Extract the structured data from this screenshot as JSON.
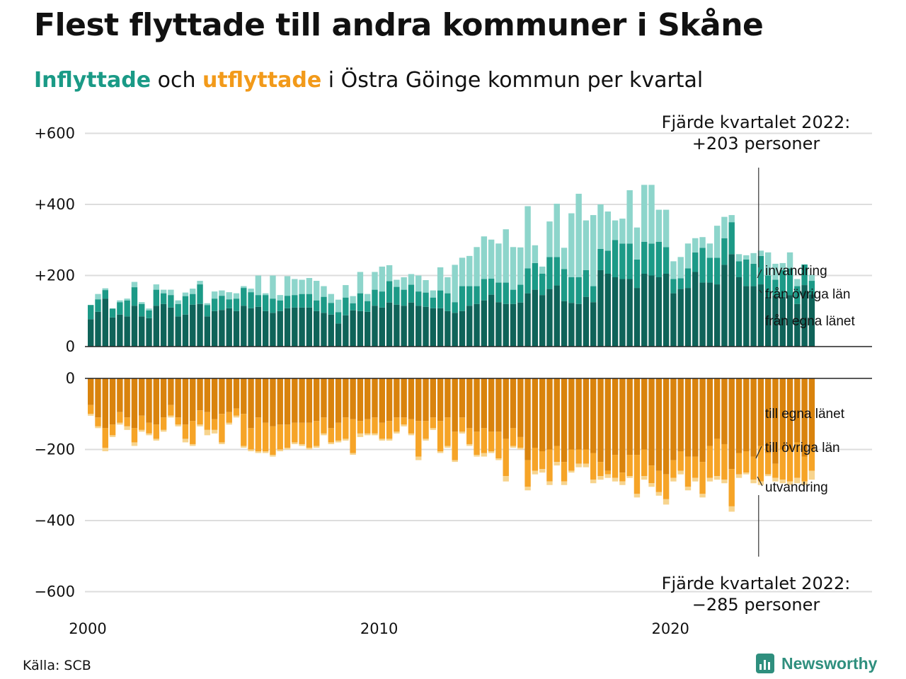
{
  "title": "Flest flyttade till andra kommuner i Skåne",
  "subtitle": {
    "part1": "Inflyttade",
    "part2": " och ",
    "part3": "utflyttade",
    "part4": " i Östra Göinge kommun per kvartal"
  },
  "source": "Källa: SCB",
  "brand": "Newsworthy",
  "callouts": {
    "top_line1": "Fjärde kvartalet 2022:",
    "top_line2": "+203 personer",
    "bottom_line1": "Fjärde kvartalet 2022:",
    "bottom_line2": "−285 personer"
  },
  "colors": {
    "in_own": "#0f6359",
    "in_other": "#1c9a87",
    "in_immig": "#8dd5cb",
    "out_own": "#d9830d",
    "out_other": "#f6a427",
    "out_emig": "#f7d48e",
    "grid": "#dddddd",
    "baseline": "#222222"
  },
  "chart_data": [
    {
      "type": "bar",
      "stacked": true,
      "name_hint": "inflyttade",
      "x_start": "2000 Q1",
      "x_end": "2022 Q4",
      "x_ticks": [
        "2000",
        "2010",
        "2020"
      ],
      "y_ticks": [
        "0",
        "+200",
        "+400",
        "+600"
      ],
      "ylim": [
        0,
        600
      ],
      "grid": true,
      "series": [
        {
          "name": "från egna länet",
          "values": [
            77,
            98,
            135,
            82,
            90,
            85,
            115,
            85,
            80,
            115,
            120,
            110,
            85,
            90,
            118,
            120,
            85,
            100,
            103,
            108,
            100,
            115,
            108,
            112,
            100,
            95,
            100,
            108,
            110,
            110,
            110,
            100,
            95,
            90,
            65,
            88,
            102,
            100,
            98,
            115,
            110,
            124,
            118,
            115,
            124,
            115,
            112,
            108,
            108,
            100,
            95,
            100,
            115,
            120,
            130,
            146,
            125,
            120,
            120,
            124,
            150,
            160,
            145,
            162,
            172,
            128,
            123,
            120,
            140,
            125,
            215,
            205,
            195,
            190,
            190,
            165,
            205,
            200,
            195,
            205,
            150,
            162,
            165,
            210,
            180,
            180,
            175,
            230,
            260,
            195,
            170,
            170,
            175,
            140,
            143,
            140,
            145,
            120,
            173,
            147
          ]
        },
        {
          "name": "från övriga län",
          "values": [
            40,
            35,
            24,
            25,
            35,
            45,
            52,
            35,
            22,
            45,
            30,
            35,
            35,
            52,
            30,
            55,
            32,
            35,
            40,
            25,
            35,
            50,
            45,
            33,
            45,
            40,
            30,
            35,
            35,
            38,
            38,
            30,
            45,
            33,
            32,
            50,
            20,
            50,
            30,
            45,
            45,
            60,
            50,
            45,
            50,
            40,
            40,
            30,
            50,
            50,
            30,
            70,
            55,
            50,
            60,
            45,
            55,
            60,
            40,
            50,
            70,
            75,
            60,
            90,
            80,
            90,
            72,
            75,
            75,
            45,
            60,
            65,
            105,
            100,
            100,
            80,
            90,
            90,
            100,
            75,
            40,
            30,
            55,
            55,
            98,
            70,
            75,
            75,
            90,
            45,
            75,
            63,
            80,
            60,
            45,
            75,
            75,
            50,
            58,
            38
          ]
        },
        {
          "name": "invandring",
          "values": [
            0,
            15,
            5,
            0,
            5,
            5,
            15,
            5,
            5,
            15,
            10,
            15,
            10,
            10,
            15,
            10,
            5,
            20,
            15,
            20,
            15,
            5,
            10,
            55,
            5,
            65,
            15,
            55,
            45,
            40,
            45,
            55,
            30,
            25,
            35,
            35,
            20,
            60,
            20,
            50,
            70,
            45,
            20,
            35,
            30,
            45,
            35,
            20,
            65,
            45,
            105,
            80,
            85,
            110,
            120,
            110,
            110,
            150,
            120,
            105,
            175,
            50,
            20,
            100,
            150,
            60,
            180,
            235,
            140,
            200,
            125,
            110,
            55,
            70,
            150,
            90,
            160,
            165,
            90,
            105,
            50,
            60,
            70,
            40,
            30,
            40,
            90,
            60,
            20,
            20,
            12,
            30,
            15,
            65,
            45,
            20,
            45,
            20,
            0,
            17
          ]
        }
      ]
    },
    {
      "type": "bar",
      "stacked": true,
      "name_hint": "utflyttade",
      "x_start": "2000 Q1",
      "x_end": "2022 Q4",
      "x_ticks": [
        "2000",
        "2010",
        "2020"
      ],
      "y_ticks": [
        "0",
        "−200",
        "−400",
        "−600"
      ],
      "ylim": [
        -600,
        0
      ],
      "grid": true,
      "series": [
        {
          "name": "till egna länet",
          "values": [
            -75,
            -110,
            -140,
            -130,
            -95,
            -110,
            -140,
            -105,
            -125,
            -130,
            -110,
            -75,
            -110,
            -130,
            -120,
            -90,
            -95,
            -115,
            -100,
            -95,
            -85,
            -100,
            -140,
            -110,
            -125,
            -135,
            -130,
            -130,
            -125,
            -125,
            -125,
            -120,
            -110,
            -140,
            -125,
            -110,
            -115,
            -120,
            -115,
            -110,
            -125,
            -120,
            -110,
            -110,
            -115,
            -120,
            -120,
            -110,
            -120,
            -110,
            -150,
            -110,
            -140,
            -150,
            -140,
            -150,
            -150,
            -170,
            -140,
            -165,
            -230,
            -195,
            -205,
            -200,
            -190,
            -235,
            -200,
            -200,
            -200,
            -210,
            -235,
            -260,
            -215,
            -265,
            -215,
            -215,
            -200,
            -245,
            -260,
            -270,
            -230,
            -205,
            -220,
            -220,
            -235,
            -190,
            -170,
            -185,
            -255,
            -210,
            -205,
            -220,
            -190,
            -210,
            -240,
            -200,
            -200,
            -180,
            -220,
            -200
          ]
        },
        {
          "name": "till övriga län",
          "values": [
            -25,
            -25,
            -55,
            -30,
            -30,
            -25,
            -40,
            -40,
            -30,
            -40,
            -35,
            -30,
            -20,
            -40,
            -65,
            -40,
            -50,
            -30,
            -80,
            -30,
            -20,
            -90,
            -60,
            -95,
            -80,
            -80,
            -70,
            -65,
            -55,
            -60,
            -70,
            -70,
            -45,
            -40,
            -50,
            -60,
            -95,
            -35,
            -40,
            -45,
            -45,
            -50,
            -40,
            -20,
            -40,
            -100,
            -50,
            -30,
            -85,
            -80,
            -80,
            -40,
            -45,
            -65,
            -70,
            -55,
            -75,
            -105,
            -50,
            -30,
            -75,
            -65,
            -50,
            -90,
            -45,
            -55,
            -60,
            -40,
            -40,
            -75,
            -40,
            -10,
            -65,
            -25,
            -60,
            -110,
            -75,
            -50,
            -60,
            -70,
            -50,
            -55,
            -85,
            -60,
            -90,
            -90,
            -105,
            -100,
            -105,
            -60,
            -60,
            -65,
            -100,
            -60,
            -40,
            -85,
            -90,
            -100,
            -70,
            -60
          ]
        },
        {
          "name": "utvandring",
          "values": [
            -5,
            -5,
            -10,
            -5,
            -5,
            -10,
            -10,
            -5,
            -5,
            -5,
            -5,
            -5,
            -5,
            -10,
            -5,
            -5,
            -15,
            -10,
            -5,
            -5,
            -5,
            -5,
            -5,
            -5,
            -5,
            -5,
            -5,
            -5,
            -5,
            -5,
            -5,
            -5,
            -5,
            -5,
            -5,
            -5,
            -5,
            -10,
            -5,
            -5,
            -5,
            -5,
            -5,
            -5,
            -5,
            -10,
            -5,
            -5,
            -5,
            -5,
            -5,
            -5,
            -5,
            -5,
            -10,
            -5,
            -5,
            -15,
            -5,
            -5,
            -10,
            -10,
            -10,
            -10,
            -10,
            -10,
            -5,
            -10,
            -10,
            -10,
            -10,
            -10,
            -10,
            -10,
            -5,
            -10,
            -10,
            -10,
            -10,
            -15,
            -10,
            -10,
            -10,
            -10,
            -10,
            -10,
            -10,
            -10,
            -15,
            -10,
            -5,
            -10,
            -10,
            -5,
            -10,
            -10,
            -10,
            -15,
            -10,
            -25
          ]
        }
      ]
    }
  ]
}
